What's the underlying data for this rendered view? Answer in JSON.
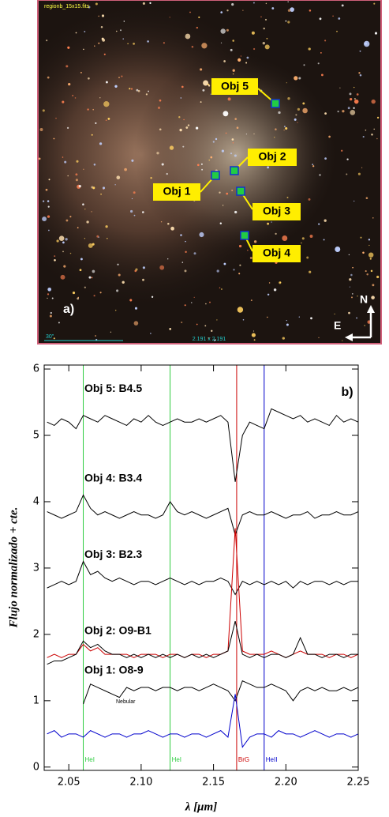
{
  "image": {
    "filename": "regionb_15x15.fits",
    "objects": [
      "Obj 1",
      "Obj 2",
      "Obj 3",
      "Obj 4",
      "Obj 5"
    ],
    "panel_label": "a)",
    "north": "N",
    "east": "E",
    "scale": "30\"",
    "size": "2.191 x 2.191"
  },
  "chart_data": {
    "type": "line",
    "panel_label": "b)",
    "xlabel": "λ [μm]",
    "ylabel": "Flujo normalizado + cte.",
    "xlim": [
      2.033,
      2.25
    ],
    "ylim": [
      -0.05,
      6.06
    ],
    "xticks": [
      {
        "value": 2.05,
        "label": "2.05"
      },
      {
        "value": 2.1,
        "label": "2.10"
      },
      {
        "value": 2.15,
        "label": "2.15"
      },
      {
        "value": 2.2,
        "label": "2.20"
      },
      {
        "value": 2.25,
        "label": "2.25"
      }
    ],
    "yticks": [
      0,
      1,
      2,
      3,
      4,
      5,
      6
    ],
    "lines": [
      {
        "x": 2.06,
        "label": "HeI",
        "color": "#2ecc40"
      },
      {
        "x": 2.12,
        "label": "HeI",
        "color": "#2ecc40"
      },
      {
        "x": 2.166,
        "label": "BrG",
        "color": "#cc0000"
      },
      {
        "x": 2.185,
        "label": "HeII",
        "color": "#0000cc"
      }
    ],
    "annotations": [
      "Nebular"
    ],
    "x": [
      2.035,
      2.04,
      2.045,
      2.05,
      2.055,
      2.06,
      2.065,
      2.07,
      2.075,
      2.08,
      2.085,
      2.09,
      2.095,
      2.1,
      2.105,
      2.11,
      2.115,
      2.12,
      2.125,
      2.13,
      2.135,
      2.14,
      2.145,
      2.15,
      2.155,
      2.16,
      2.165,
      2.17,
      2.175,
      2.18,
      2.185,
      2.19,
      2.195,
      2.2,
      2.205,
      2.21,
      2.215,
      2.22,
      2.225,
      2.23,
      2.235,
      2.24,
      2.245,
      2.25
    ],
    "series": [
      {
        "name": "Obj 5: B4.5",
        "color": "#000000",
        "values": [
          5.2,
          5.15,
          5.25,
          5.2,
          5.1,
          5.3,
          5.25,
          5.2,
          5.3,
          5.25,
          5.2,
          5.15,
          5.25,
          5.2,
          5.3,
          5.2,
          5.15,
          5.2,
          5.25,
          5.2,
          5.2,
          5.25,
          5.2,
          5.25,
          5.3,
          5.2,
          4.3,
          5.0,
          5.2,
          5.15,
          5.1,
          5.4,
          5.35,
          5.3,
          5.25,
          5.3,
          5.2,
          5.25,
          5.2,
          5.15,
          5.3,
          5.2,
          5.25,
          5.2
        ]
      },
      {
        "name": "Obj 4: B3.4",
        "color": "#000000",
        "values": [
          3.85,
          3.8,
          3.75,
          3.8,
          3.85,
          4.1,
          3.9,
          3.8,
          3.85,
          3.8,
          3.75,
          3.8,
          3.85,
          3.8,
          3.8,
          3.75,
          3.8,
          4.0,
          3.85,
          3.8,
          3.85,
          3.8,
          3.75,
          3.8,
          3.85,
          3.9,
          3.5,
          3.8,
          3.85,
          3.8,
          3.8,
          3.85,
          3.8,
          3.75,
          3.8,
          3.8,
          3.85,
          3.75,
          3.8,
          3.8,
          3.85,
          3.8,
          3.8,
          3.85
        ]
      },
      {
        "name": "Obj 3: B2.3",
        "color": "#000000",
        "values": [
          2.7,
          2.75,
          2.8,
          2.75,
          2.8,
          3.1,
          2.9,
          2.95,
          2.85,
          2.8,
          2.85,
          2.8,
          2.75,
          2.8,
          2.8,
          2.75,
          2.8,
          2.85,
          2.8,
          2.75,
          2.8,
          2.75,
          2.8,
          2.8,
          2.85,
          2.8,
          2.6,
          2.8,
          2.75,
          2.8,
          2.75,
          2.8,
          2.75,
          2.8,
          2.7,
          2.8,
          2.75,
          2.8,
          2.8,
          2.75,
          2.8,
          2.75,
          2.8,
          2.8
        ]
      },
      {
        "color": "#cc0000",
        "values": [
          1.65,
          1.7,
          1.65,
          1.7,
          1.7,
          1.85,
          1.75,
          1.8,
          1.7,
          1.7,
          1.7,
          1.7,
          1.65,
          1.7,
          1.7,
          1.7,
          1.65,
          1.7,
          1.7,
          1.65,
          1.7,
          1.7,
          1.65,
          1.7,
          1.7,
          1.75,
          3.6,
          1.75,
          1.7,
          1.7,
          1.7,
          1.75,
          1.7,
          1.65,
          1.7,
          1.75,
          1.7,
          1.7,
          1.7,
          1.65,
          1.7,
          1.7,
          1.65,
          1.7
        ]
      },
      {
        "name": "Obj 2: O9-B1",
        "color": "#000000",
        "values": [
          1.55,
          1.6,
          1.6,
          1.65,
          1.7,
          1.9,
          1.8,
          1.85,
          1.75,
          1.7,
          1.7,
          1.65,
          1.7,
          1.65,
          1.7,
          1.65,
          1.7,
          1.65,
          1.7,
          1.65,
          1.7,
          1.65,
          1.7,
          1.65,
          1.7,
          1.75,
          2.2,
          1.7,
          1.65,
          1.7,
          1.65,
          1.7,
          1.7,
          1.65,
          1.7,
          1.95,
          1.7,
          1.7,
          1.65,
          1.7,
          1.7,
          1.65,
          1.7,
          1.7
        ]
      },
      {
        "name": "Obj 1: O8-9",
        "color": "#000000",
        "values": [
          null,
          null,
          null,
          null,
          null,
          0.95,
          1.25,
          1.2,
          1.15,
          1.1,
          1.05,
          1.2,
          1.15,
          1.2,
          1.2,
          1.15,
          1.2,
          1.2,
          1.15,
          1.2,
          1.2,
          1.15,
          1.2,
          1.25,
          1.2,
          1.15,
          1.0,
          1.3,
          1.25,
          1.2,
          1.2,
          1.25,
          1.2,
          1.15,
          1.0,
          1.15,
          1.2,
          1.15,
          1.2,
          1.15,
          1.15,
          1.2,
          1.15,
          1.2
        ]
      },
      {
        "color": "#0000cc",
        "values": [
          0.5,
          0.55,
          0.45,
          0.5,
          0.5,
          0.45,
          0.55,
          0.5,
          0.45,
          0.5,
          0.5,
          0.45,
          0.5,
          0.5,
          0.55,
          0.5,
          0.45,
          0.5,
          0.5,
          0.45,
          0.5,
          0.5,
          0.45,
          0.5,
          0.55,
          0.45,
          1.1,
          0.3,
          0.45,
          0.5,
          0.5,
          0.45,
          0.55,
          0.5,
          0.5,
          0.45,
          0.5,
          0.55,
          0.5,
          0.45,
          0.5,
          0.5,
          0.45,
          0.5
        ]
      }
    ]
  }
}
